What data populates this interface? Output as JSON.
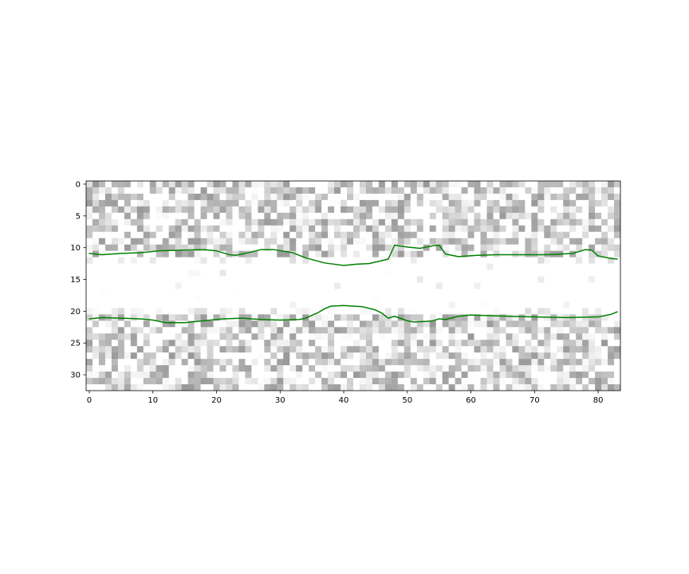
{
  "chart_data": {
    "type": "heatmap",
    "title": "",
    "xlabel": "",
    "ylabel": "",
    "xlim": [
      -0.5,
      83.5
    ],
    "ylim": [
      32.5,
      -0.5
    ],
    "y_inverted": true,
    "grid": false,
    "legend": "none",
    "colormap": "gray_r",
    "background_range": [
      0,
      0.4
    ],
    "band_clear_rows": [
      13,
      19
    ],
    "xticks": [
      0,
      10,
      20,
      30,
      40,
      50,
      60,
      70,
      80
    ],
    "xtick_labels": [
      "0",
      "10",
      "20",
      "30",
      "40",
      "50",
      "60",
      "70",
      "80"
    ],
    "yticks": [
      0,
      5,
      10,
      15,
      20,
      25,
      30
    ],
    "ytick_labels": [
      "0",
      "5",
      "10",
      "15",
      "20",
      "25",
      "30"
    ],
    "image_shape": [
      33,
      84
    ],
    "series": [
      {
        "color": "#008000",
        "points": [
          [
            0,
            10.9
          ],
          [
            2,
            11.1
          ],
          [
            5,
            10.9
          ],
          [
            8,
            10.8
          ],
          [
            11,
            10.5
          ],
          [
            14,
            10.4
          ],
          [
            18,
            10.3
          ],
          [
            20,
            10.5
          ],
          [
            22,
            11.1
          ],
          [
            23,
            11.2
          ],
          [
            25,
            10.8
          ],
          [
            27,
            10.3
          ],
          [
            29,
            10.3
          ],
          [
            32,
            10.8
          ],
          [
            34,
            11.6
          ],
          [
            37,
            12.4
          ],
          [
            40,
            12.8
          ],
          [
            42,
            12.6
          ],
          [
            44,
            12.5
          ],
          [
            47,
            11.8
          ],
          [
            48,
            9.6
          ],
          [
            50,
            9.9
          ],
          [
            52,
            10.1
          ],
          [
            54,
            9.7
          ],
          [
            55,
            9.6
          ],
          [
            56,
            11.0
          ],
          [
            58,
            11.4
          ],
          [
            61,
            11.2
          ],
          [
            64,
            11.1
          ],
          [
            68,
            11.1
          ],
          [
            72,
            11.1
          ],
          [
            76,
            10.9
          ],
          [
            78,
            10.3
          ],
          [
            79,
            10.4
          ],
          [
            80,
            11.3
          ],
          [
            82,
            11.7
          ],
          [
            83,
            11.8
          ]
        ]
      },
      {
        "color": "#008000",
        "points": [
          [
            0,
            21.2
          ],
          [
            2,
            21.0
          ],
          [
            5,
            21.1
          ],
          [
            8,
            21.2
          ],
          [
            10,
            21.4
          ],
          [
            12,
            21.8
          ],
          [
            15,
            21.8
          ],
          [
            18,
            21.5
          ],
          [
            21,
            21.2
          ],
          [
            24,
            21.1
          ],
          [
            27,
            21.3
          ],
          [
            30,
            21.4
          ],
          [
            33,
            21.3
          ],
          [
            34,
            21.1
          ],
          [
            36,
            20.2
          ],
          [
            37,
            19.6
          ],
          [
            38,
            19.2
          ],
          [
            40,
            19.1
          ],
          [
            43,
            19.3
          ],
          [
            45,
            19.8
          ],
          [
            46,
            20.3
          ],
          [
            47,
            21.1
          ],
          [
            48,
            20.8
          ],
          [
            50,
            21.5
          ],
          [
            51,
            21.7
          ],
          [
            53,
            21.6
          ],
          [
            54,
            21.5
          ],
          [
            55,
            21.2
          ],
          [
            56,
            21.3
          ],
          [
            58,
            20.8
          ],
          [
            60,
            20.6
          ],
          [
            63,
            20.7
          ],
          [
            66,
            20.8
          ],
          [
            70,
            20.9
          ],
          [
            75,
            21.0
          ],
          [
            80,
            20.9
          ],
          [
            82,
            20.5
          ],
          [
            83,
            20.1
          ]
        ]
      }
    ]
  }
}
